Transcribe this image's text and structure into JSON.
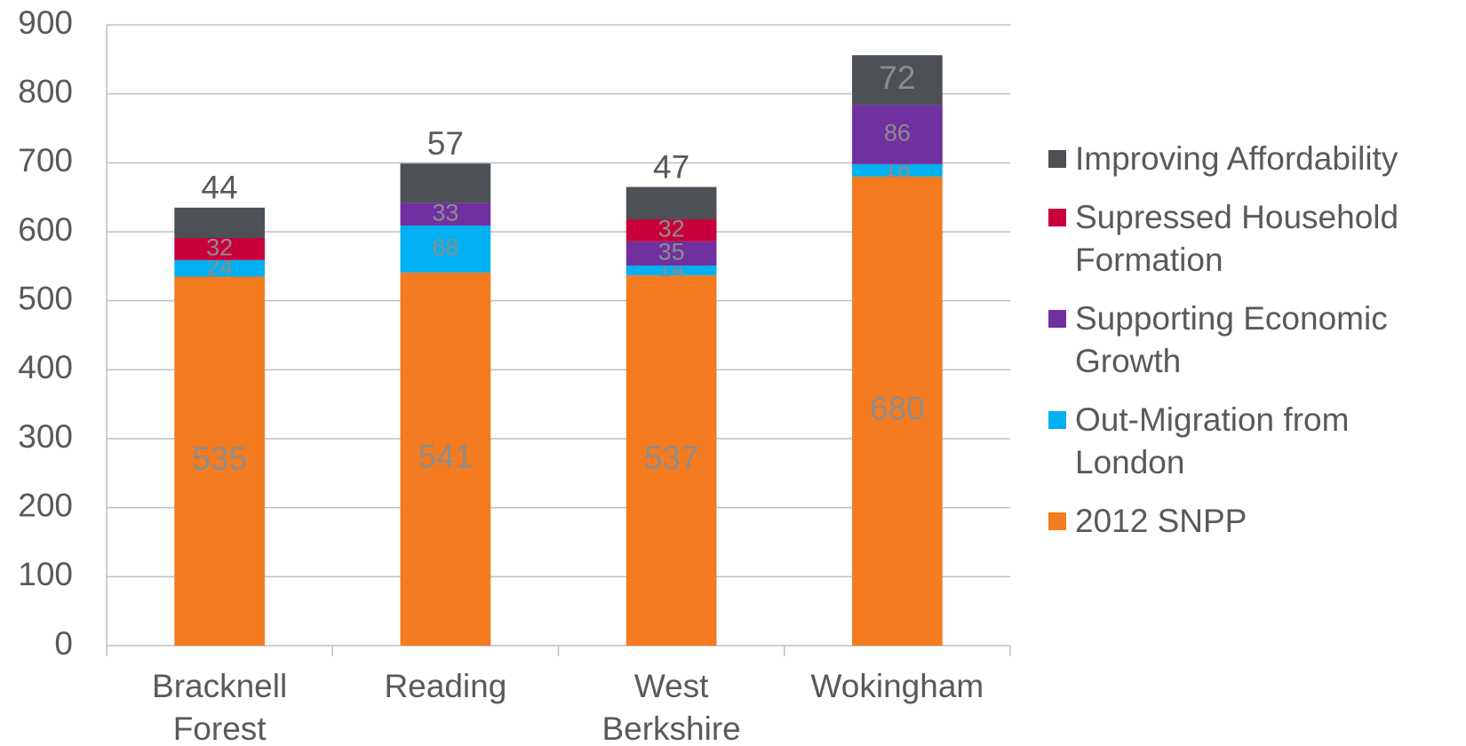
{
  "chart_data": {
    "type": "stacked-bar",
    "categories": [
      "Bracknell Forest",
      "Reading",
      "West Berkshire",
      "Wokingham"
    ],
    "series": [
      {
        "name": "2012 SNPP",
        "color": "#f47b20",
        "values": [
          535,
          541,
          537,
          680
        ]
      },
      {
        "name": "Out-Migration from London",
        "color": "#00b0f0",
        "values": [
          24,
          68,
          14,
          18
        ]
      },
      {
        "name": "Supporting Economic Growth",
        "color": "#7030a0",
        "values": [
          null,
          33,
          35,
          86
        ]
      },
      {
        "name": "Supressed Household Formation",
        "color": "#c8003c",
        "values": [
          32,
          null,
          32,
          null
        ]
      },
      {
        "name": "Improving Affordability",
        "color": "#4d5055",
        "values": [
          44,
          57,
          47,
          72
        ]
      }
    ],
    "ylim": [
      0,
      900
    ],
    "yticks": [
      0,
      100,
      200,
      300,
      400,
      500,
      600,
      700,
      800,
      900
    ],
    "grid": true,
    "legend": "right"
  }
}
